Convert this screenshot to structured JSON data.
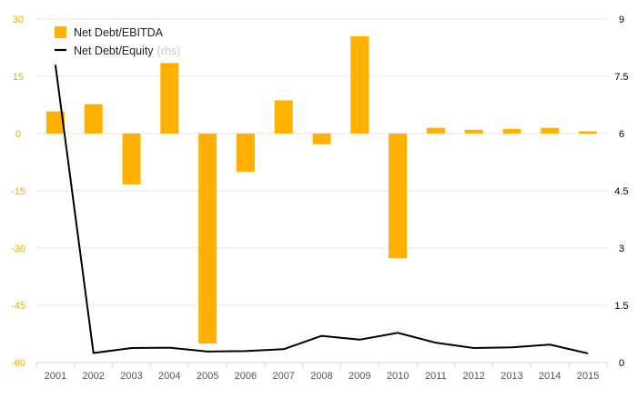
{
  "chart_data": {
    "type": "bar+line",
    "categories": [
      "2001",
      "2002",
      "2003",
      "2004",
      "2005",
      "2006",
      "2007",
      "2008",
      "2009",
      "2010",
      "2011",
      "2012",
      "2013",
      "2014",
      "2015"
    ],
    "series": [
      {
        "name": "Net Debt/EBITDA",
        "type": "bar",
        "axis": "left",
        "color": "#FFB000",
        "values": [
          5.8,
          7.7,
          -13.3,
          18.5,
          -55.0,
          -10.0,
          8.7,
          -2.8,
          25.5,
          -32.7,
          1.5,
          1.0,
          1.2,
          1.5,
          0.6
        ]
      },
      {
        "name": "Net Debt/Equity",
        "name_suffix": "(rhs)",
        "type": "line",
        "axis": "right",
        "color": "#000000",
        "values": [
          7.8,
          0.25,
          0.38,
          0.39,
          0.29,
          0.3,
          0.35,
          0.7,
          0.6,
          0.78,
          0.52,
          0.38,
          0.4,
          0.47,
          0.24
        ]
      }
    ],
    "left_axis": {
      "ticks": [
        "30",
        "15",
        "0",
        "-15",
        "-30",
        "-45",
        "-60"
      ],
      "ylim": [
        -60,
        30
      ],
      "color": "#F5A800"
    },
    "right_axis": {
      "ticks": [
        "9",
        "7.5",
        "6",
        "4.5",
        "3",
        "1.5",
        "0"
      ],
      "ylim": [
        0,
        9
      ],
      "color": "#000000"
    },
    "grid": true,
    "legend_position": "top-left",
    "title": "",
    "xlabel": "",
    "ylabel": ""
  }
}
